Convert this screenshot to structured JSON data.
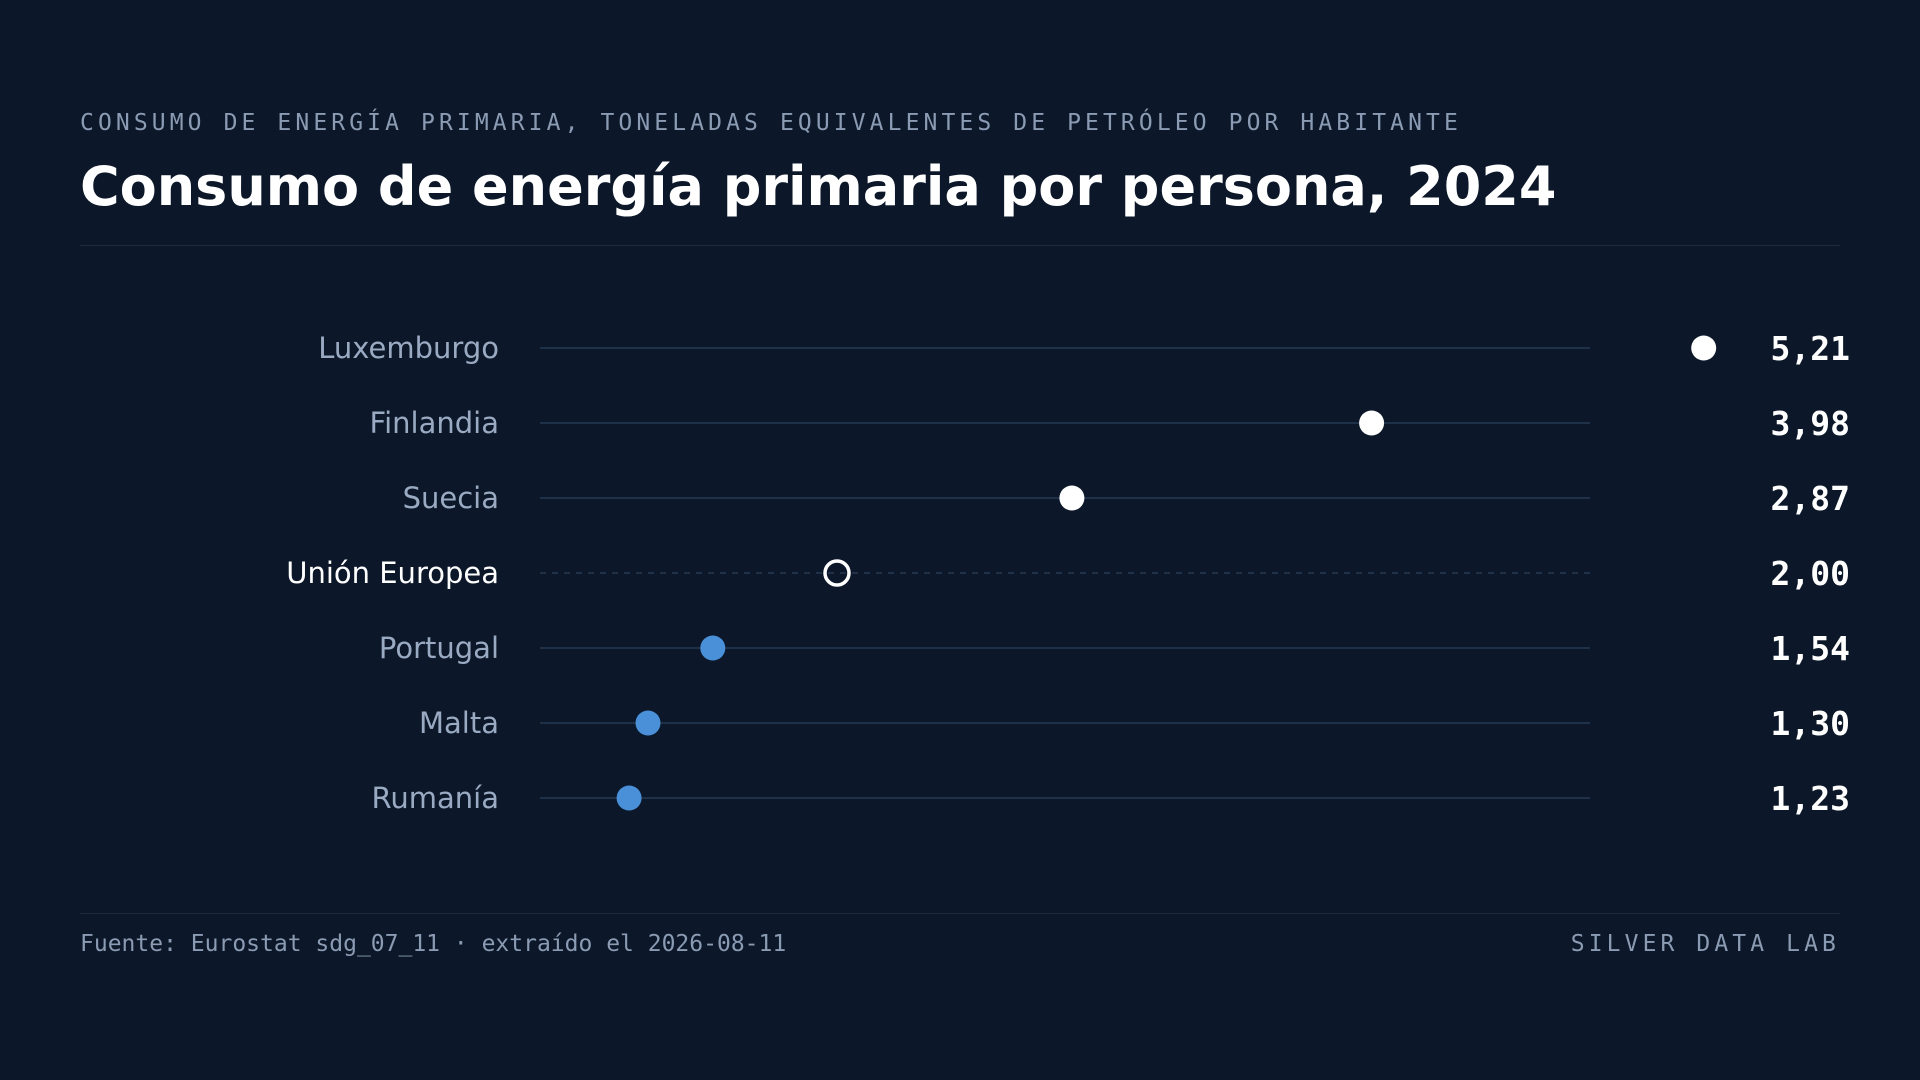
{
  "header": {
    "kicker": "CONSUMO DE ENERGÍA PRIMARIA, TONELADAS EQUIVALENTES DE PETRÓLEO POR HABITANTE",
    "title": "Consumo de energía primaria por persona, 2024"
  },
  "footer": {
    "source": "Fuente: Eurostat sdg_07_11 · extraído el 2026-08-11",
    "brand": "SILVER DATA LAB"
  },
  "colors": {
    "background": "#0c1829",
    "track": "#1f3148",
    "high": "#ffffff",
    "low": "#4a90d9",
    "reference": "#ffffff",
    "label": "#9aaac2",
    "label_reference": "#ffffff",
    "value": "#ffffff"
  },
  "chart_data": {
    "type": "dot",
    "title": "Consumo de energía primaria por persona, 2024",
    "xlabel": "",
    "ylabel": "",
    "xlim": [
      0.9,
      5.6
    ],
    "grid": false,
    "legend": "none",
    "categories": [
      "Luxemburgo",
      "Finlandia",
      "Suecia",
      "Unión Europea",
      "Portugal",
      "Malta",
      "Rumanía"
    ],
    "values": [
      5.21,
      3.98,
      2.87,
      2.0,
      1.54,
      1.3,
      1.23
    ],
    "value_labels": [
      "5,21",
      "3,98",
      "2,87",
      "2,00",
      "1,54",
      "1,30",
      "1,23"
    ],
    "groups": [
      "above",
      "above",
      "above",
      "reference",
      "below",
      "below",
      "below"
    ]
  }
}
